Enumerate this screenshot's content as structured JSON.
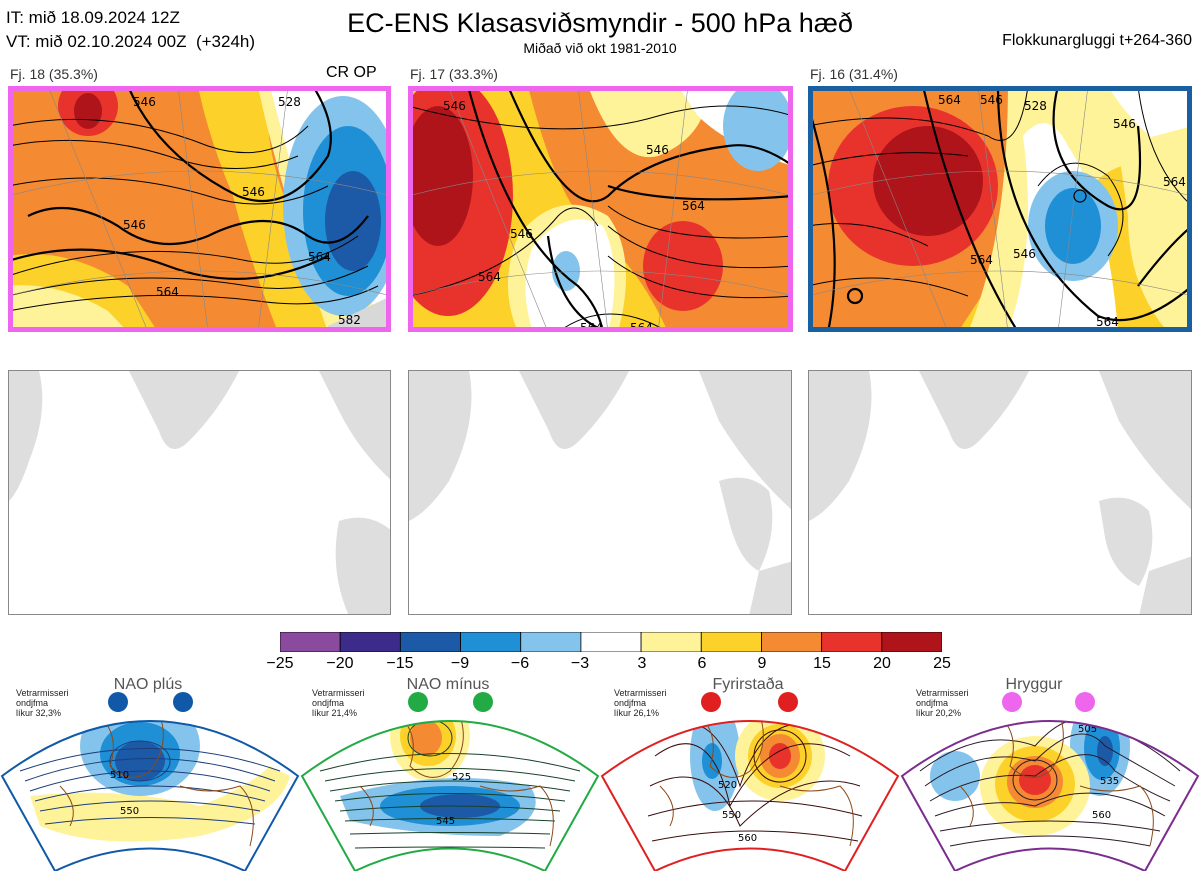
{
  "header": {
    "it_line": "IT: mið 18.09.2024 12Z",
    "vt_line": "VT: mið 02.10.2024 00Z  (+324h)",
    "title": "EC-ENS Klasasviðsmyndir - 500 hPa hæð",
    "subtitle": "Miðað við okt 1981-2010",
    "window": "Flokkunargluggi t+264-360"
  },
  "clusters": [
    {
      "label": "Fj. 18 (35.3%)",
      "extra": "CR OP",
      "frame_color": "#ee66ee",
      "contour_labels": [
        "546",
        "528",
        "546",
        "546",
        "564",
        "564",
        "582"
      ]
    },
    {
      "label": "Fj. 17 (33.3%)",
      "extra": "",
      "frame_color": "#ee66ee",
      "contour_labels": [
        "546",
        "546",
        "564",
        "546",
        "564",
        "564",
        "564"
      ]
    },
    {
      "label": "Fj. 16 (31.4%)",
      "extra": "",
      "frame_color": "#1a5fa0",
      "contour_labels": [
        "564",
        "546",
        "528",
        "546",
        "564",
        "564",
        "546",
        "564"
      ]
    }
  ],
  "colorbar": {
    "ticks": [
      "−25",
      "−20",
      "−15",
      "−9",
      "−6",
      "−3",
      "3",
      "6",
      "9",
      "15",
      "20",
      "25"
    ],
    "colors": [
      "#8a4b9e",
      "#3d2b8c",
      "#1c5aa8",
      "#1f8fd6",
      "#84c4ec",
      "#ffffff",
      "#fff39a",
      "#fcd12a",
      "#f48a32",
      "#e8332d",
      "#b0141b"
    ]
  },
  "regimes": [
    {
      "name": "NAO plús",
      "season": "Vetrarmisseri",
      "month": "ondjfma",
      "likur": "líkur 32,3%",
      "dot_color": "#1059a8",
      "edge_color": "#1059a8",
      "contour_labels": [
        "510",
        "550"
      ]
    },
    {
      "name": "NAO mínus",
      "season": "Vetrarmisseri",
      "month": "ondjfma",
      "likur": "líkur 21,4%",
      "dot_color": "#22aa44",
      "edge_color": "#22aa44",
      "contour_labels": [
        "525",
        "545",
        "565"
      ]
    },
    {
      "name": "Fyrirstaða",
      "season": "Vetrarmisseri",
      "month": "ondjfma",
      "likur": "líkur 26,1%",
      "dot_color": "#e02020",
      "edge_color": "#e02020",
      "contour_labels": [
        "520",
        "550",
        "560"
      ]
    },
    {
      "name": "Hryggur",
      "season": "Vetrarmisseri",
      "month": "ondjfma",
      "likur": "líkur 20,2%",
      "dot_color": "#ee66ee",
      "edge_color": "#7b2d8e",
      "contour_labels": [
        "505",
        "535",
        "560"
      ]
    }
  ]
}
